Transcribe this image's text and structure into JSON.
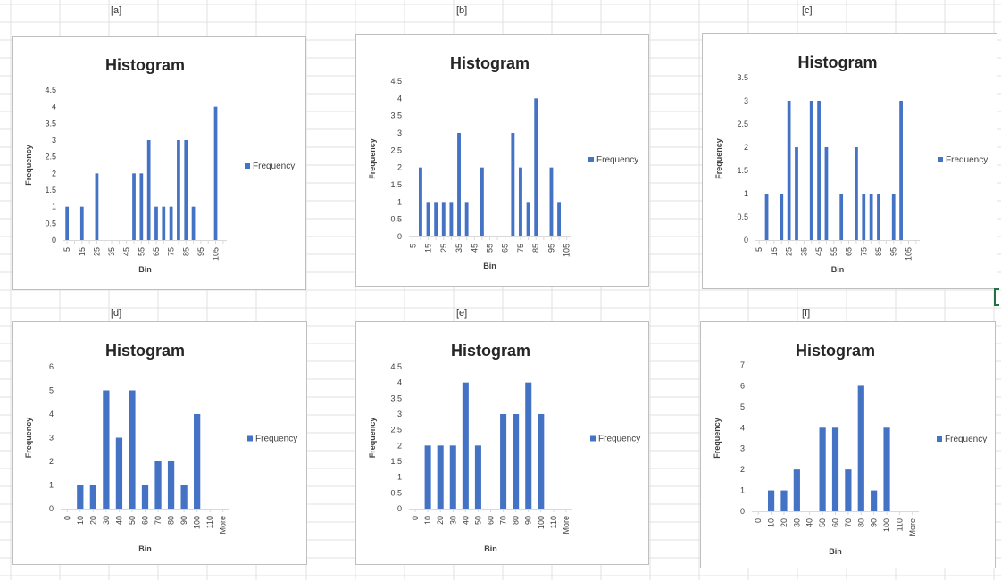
{
  "sheet": {
    "cell_labels": [
      "[a]",
      "[b]",
      "[c]",
      "[d]",
      "[e]",
      "[f]"
    ]
  },
  "colors": {
    "bar": "#4472c4",
    "axis": "#d9d9d9",
    "text": "#404040",
    "title": "#262626",
    "gridline": "#e1e1e1"
  },
  "chart_data": [
    {
      "type": "bar",
      "title": "Histogram",
      "xlabel": "Bin",
      "ylabel": "Frequency",
      "legend": "right",
      "grid": false,
      "series": [
        {
          "name": "Frequency",
          "values": [
            1,
            0,
            1,
            0,
            2,
            0,
            0,
            0,
            0,
            2,
            2,
            3,
            1,
            1,
            1,
            3,
            3,
            1,
            0,
            0,
            4,
            0
          ]
        }
      ],
      "categories": [
        "5",
        "10",
        "15",
        "20",
        "25",
        "30",
        "35",
        "40",
        "45",
        "50",
        "55",
        "60",
        "65",
        "70",
        "75",
        "80",
        "85",
        "90",
        "95",
        "100",
        "105",
        "110"
      ],
      "tick_labels": [
        "5",
        "15",
        "25",
        "35",
        "45",
        "55",
        "65",
        "75",
        "85",
        "95",
        "105"
      ],
      "yticks": [
        "0",
        "0.5",
        "1",
        "1.5",
        "2",
        "2.5",
        "3",
        "3.5",
        "4",
        "4.5"
      ],
      "ylim": [
        0,
        4.5
      ]
    },
    {
      "type": "bar",
      "title": "Histogram",
      "xlabel": "Bin",
      "ylabel": "Frequency",
      "legend": "right",
      "grid": false,
      "series": [
        {
          "name": "Frequency",
          "values": [
            0,
            2,
            1,
            1,
            1,
            1,
            3,
            1,
            0,
            2,
            0,
            0,
            0,
            3,
            2,
            1,
            4,
            0,
            2,
            1,
            0
          ]
        }
      ],
      "categories": [
        "5",
        "10",
        "15",
        "20",
        "25",
        "30",
        "35",
        "40",
        "45",
        "50",
        "55",
        "60",
        "65",
        "70",
        "75",
        "80",
        "85",
        "90",
        "95",
        "100",
        "105"
      ],
      "tick_labels": [
        "5",
        "15",
        "25",
        "35",
        "45",
        "55",
        "65",
        "75",
        "85",
        "95",
        "105"
      ],
      "yticks": [
        "0",
        "0.5",
        "1",
        "1.5",
        "2",
        "2.5",
        "3",
        "3.5",
        "4",
        "4.5"
      ],
      "ylim": [
        0,
        4.5
      ]
    },
    {
      "type": "bar",
      "title": "Histogram",
      "xlabel": "Bin",
      "ylabel": "Frequency",
      "legend": "right",
      "grid": false,
      "series": [
        {
          "name": "Frequency",
          "values": [
            0,
            1,
            0,
            1,
            3,
            2,
            0,
            3,
            3,
            2,
            0,
            1,
            0,
            2,
            1,
            1,
            1,
            0,
            1,
            3,
            0,
            0
          ]
        }
      ],
      "categories": [
        "5",
        "10",
        "15",
        "20",
        "25",
        "30",
        "35",
        "40",
        "45",
        "50",
        "55",
        "60",
        "65",
        "70",
        "75",
        "80",
        "85",
        "90",
        "95",
        "100",
        "105",
        "110"
      ],
      "tick_labels": [
        "5",
        "15",
        "25",
        "35",
        "45",
        "55",
        "65",
        "75",
        "85",
        "95",
        "105"
      ],
      "yticks": [
        "0",
        "0.5",
        "1",
        "1.5",
        "2",
        "2.5",
        "3",
        "3.5"
      ],
      "ylim": [
        0,
        3.5
      ]
    },
    {
      "type": "bar",
      "title": "Histogram",
      "xlabel": "Bin",
      "ylabel": "Frequency",
      "legend": "right",
      "grid": false,
      "series": [
        {
          "name": "Frequency",
          "values": [
            0,
            1,
            1,
            5,
            3,
            5,
            1,
            2,
            2,
            1,
            4,
            0,
            0
          ]
        }
      ],
      "categories": [
        "0",
        "10",
        "20",
        "30",
        "40",
        "50",
        "60",
        "70",
        "80",
        "90",
        "100",
        "110",
        "More"
      ],
      "tick_labels": [
        "0",
        "10",
        "20",
        "30",
        "40",
        "50",
        "60",
        "70",
        "80",
        "90",
        "100",
        "110",
        "More"
      ],
      "yticks": [
        "0",
        "1",
        "2",
        "3",
        "4",
        "5",
        "6"
      ],
      "ylim": [
        0,
        6
      ]
    },
    {
      "type": "bar",
      "title": "Histogram",
      "xlabel": "Bin",
      "ylabel": "Frequency",
      "legend": "right",
      "grid": false,
      "series": [
        {
          "name": "Frequency",
          "values": [
            0,
            2,
            2,
            2,
            4,
            2,
            0,
            3,
            3,
            4,
            3,
            0,
            0
          ]
        }
      ],
      "categories": [
        "0",
        "10",
        "20",
        "30",
        "40",
        "50",
        "60",
        "70",
        "80",
        "90",
        "100",
        "110",
        "More"
      ],
      "tick_labels": [
        "0",
        "10",
        "20",
        "30",
        "40",
        "50",
        "60",
        "70",
        "80",
        "90",
        "100",
        "110",
        "More"
      ],
      "yticks": [
        "0",
        "0.5",
        "1",
        "1.5",
        "2",
        "2.5",
        "3",
        "3.5",
        "4",
        "4.5"
      ],
      "ylim": [
        0,
        4.5
      ]
    },
    {
      "type": "bar",
      "title": "Histogram",
      "xlabel": "Bin",
      "ylabel": "Frequency",
      "legend": "right",
      "grid": false,
      "series": [
        {
          "name": "Frequency",
          "values": [
            0,
            1,
            1,
            2,
            0,
            4,
            4,
            2,
            6,
            1,
            4,
            0,
            0
          ]
        }
      ],
      "categories": [
        "0",
        "10",
        "20",
        "30",
        "40",
        "50",
        "60",
        "70",
        "80",
        "90",
        "100",
        "110",
        "More"
      ],
      "tick_labels": [
        "0",
        "10",
        "20",
        "30",
        "40",
        "50",
        "60",
        "70",
        "80",
        "90",
        "100",
        "110",
        "More"
      ],
      "yticks": [
        "0",
        "1",
        "2",
        "3",
        "4",
        "5",
        "6",
        "7"
      ],
      "ylim": [
        0,
        7
      ]
    }
  ]
}
